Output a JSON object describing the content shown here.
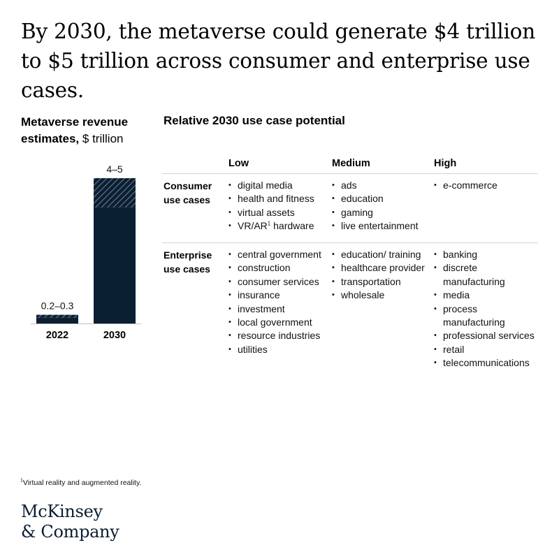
{
  "headline": "By 2030, the metaverse could generate $4 trillion to $5 trillion across consumer and enterprise use cases.",
  "chart_data": {
    "type": "bar",
    "title_bold": "Metaverse revenue estimates,",
    "title_unit": "$ trillion",
    "categories": [
      "2022",
      "2030"
    ],
    "ranges": [
      [
        0.2,
        0.3
      ],
      [
        4,
        5
      ]
    ],
    "value_labels": [
      "0.2–0.3",
      "4–5"
    ],
    "ylim": [
      0,
      5
    ],
    "colors": {
      "bar": "#0b1f33",
      "hatch_fg": "#6f7b87",
      "baseline": "#bfbfbf"
    }
  },
  "table": {
    "title": "Relative 2030 use case potential",
    "columns": [
      "Low",
      "Medium",
      "High"
    ],
    "rows": [
      {
        "label": "Consumer use cases",
        "cells": [
          [
            "digital media",
            "health and fitness",
            "virtual assets",
            "VR/AR¹ hardware"
          ],
          [
            "ads",
            "education",
            "gaming",
            "live entertainment"
          ],
          [
            "e-commerce"
          ]
        ]
      },
      {
        "label": "Enterprise use cases",
        "cells": [
          [
            "central government",
            "construction",
            "consumer services",
            "insurance",
            "investment",
            "local government",
            "resource industries",
            "utilities"
          ],
          [
            "education/ training",
            "healthcare provider",
            "transportation",
            "wholesale"
          ],
          [
            "banking",
            "discrete manufacturing",
            "media",
            "process manufacturing",
            "professional services",
            "retail",
            "telecommunications"
          ]
        ]
      }
    ]
  },
  "footnote": "¹Virtual reality and augmented reality.",
  "logo": {
    "line1": "McKinsey",
    "line2": "& Company"
  }
}
